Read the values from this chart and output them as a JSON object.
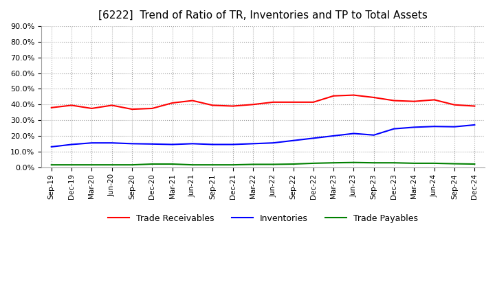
{
  "title": "[6222]  Trend of Ratio of TR, Inventories and TP to Total Assets",
  "ylim": [
    0.0,
    0.9
  ],
  "yticks": [
    0.0,
    0.1,
    0.2,
    0.3,
    0.4,
    0.5,
    0.6,
    0.7,
    0.8,
    0.9
  ],
  "ytick_labels": [
    "0.0%",
    "10.0%",
    "20.0%",
    "30.0%",
    "40.0%",
    "50.0%",
    "60.0%",
    "70.0%",
    "80.0%",
    "90.0%"
  ],
  "x_labels": [
    "Sep-19",
    "Dec-19",
    "Mar-20",
    "Jun-20",
    "Sep-20",
    "Dec-20",
    "Mar-21",
    "Jun-21",
    "Sep-21",
    "Dec-21",
    "Mar-22",
    "Jun-22",
    "Sep-22",
    "Dec-22",
    "Mar-23",
    "Jun-23",
    "Sep-23",
    "Dec-23",
    "Mar-24",
    "Jun-24",
    "Sep-24",
    "Dec-24"
  ],
  "trade_receivables": [
    0.38,
    0.395,
    0.375,
    0.395,
    0.37,
    0.375,
    0.41,
    0.425,
    0.395,
    0.39,
    0.4,
    0.415,
    0.415,
    0.415,
    0.455,
    0.46,
    0.445,
    0.425,
    0.42,
    0.43,
    0.398,
    0.39
  ],
  "inventories": [
    0.13,
    0.145,
    0.155,
    0.155,
    0.15,
    0.148,
    0.145,
    0.15,
    0.145,
    0.145,
    0.15,
    0.155,
    0.17,
    0.185,
    0.2,
    0.215,
    0.205,
    0.245,
    0.255,
    0.26,
    0.258,
    0.27
  ],
  "trade_payables": [
    0.015,
    0.015,
    0.015,
    0.015,
    0.015,
    0.02,
    0.02,
    0.015,
    0.015,
    0.015,
    0.018,
    0.018,
    0.02,
    0.025,
    0.028,
    0.03,
    0.028,
    0.028,
    0.025,
    0.025,
    0.022,
    0.02
  ],
  "tr_color": "#ff0000",
  "inv_color": "#0000ff",
  "tp_color": "#008000",
  "background_color": "#ffffff",
  "grid_color": "#a0a0a0",
  "title_fontsize": 11,
  "legend_labels": [
    "Trade Receivables",
    "Inventories",
    "Trade Payables"
  ]
}
